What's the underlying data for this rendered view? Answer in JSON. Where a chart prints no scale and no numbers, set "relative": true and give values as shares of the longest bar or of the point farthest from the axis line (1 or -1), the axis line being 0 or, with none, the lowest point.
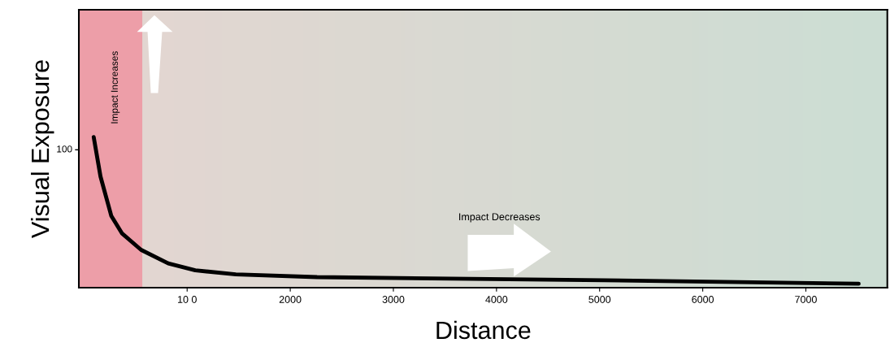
{
  "chart_data": {
    "type": "line",
    "relative": true,
    "xlabel": "Distance",
    "ylabel": "Visual Exposure",
    "x": [
      94,
      160,
      265,
      370,
      554,
      817,
      1079,
      1472,
      2260,
      5044,
      7512
    ],
    "series": [
      {
        "color": "#000000",
        "values": [
          1.0,
          0.738,
          0.476,
          0.359,
          0.251,
          0.161,
          0.115,
          0.088,
          0.07,
          0.049,
          0.026
        ]
      }
    ],
    "xlim": [
      -50,
      7790
    ],
    "xticks": [
      {
        "value": 1000,
        "label": "10 0"
      },
      2000,
      3000,
      4000,
      5000,
      6000,
      7000
    ],
    "annotations": [
      "100",
      "Impact Increases",
      "Impact Decreases"
    ],
    "grid": false,
    "marker": "none",
    "line_style": "solid"
  }
}
